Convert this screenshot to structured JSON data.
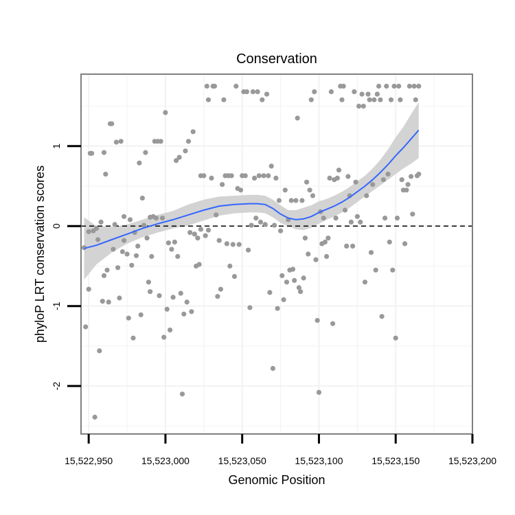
{
  "chart_data": {
    "type": "scatter",
    "title": "Conservation",
    "xlabel": "Genomic Position",
    "ylabel": "phyloP LRT conservation scores",
    "xlim": [
      15522945,
      15523200
    ],
    "ylim": [
      -2.6,
      1.9
    ],
    "x_ticks": [
      15522950,
      15523000,
      15523050,
      15523100,
      15523150,
      15523200
    ],
    "x_tick_labels": [
      "15,522,950",
      "15,523,000",
      "15,523,050",
      "15,523,100",
      "15,523,150",
      "15,523,200"
    ],
    "y_ticks": [
      -2,
      -1,
      0,
      1
    ],
    "y_tick_labels": [
      "-2",
      "-1",
      "0",
      "1"
    ],
    "reference_line": {
      "y": 0,
      "style": "dashed"
    },
    "grid": true,
    "colors": {
      "points": "#999999",
      "smooth": "#3366ff",
      "ribbon": "#d3d3d3",
      "border": "#7f7f7f",
      "grid": "#f2f2f2"
    },
    "series": [
      {
        "name": "scores",
        "points": [
          [
            15522947,
            -0.27
          ],
          [
            15522948,
            -1.26
          ],
          [
            15522950,
            -0.07
          ],
          [
            15522950,
            -0.79
          ],
          [
            15522951,
            0.91
          ],
          [
            15522952,
            0.91
          ],
          [
            15522953,
            -0.06
          ],
          [
            15522954,
            -2.39
          ],
          [
            15522955,
            -0.03
          ],
          [
            15522956,
            -0.17
          ],
          [
            15522957,
            -1.56
          ],
          [
            15522958,
            0.05
          ],
          [
            15522959,
            -0.94
          ],
          [
            15522960,
            0.92
          ],
          [
            15522960,
            -0.62
          ],
          [
            15522961,
            0.65
          ],
          [
            15522962,
            -0.55
          ],
          [
            15522963,
            -0.95
          ],
          [
            15522964,
            1.28
          ],
          [
            15522965,
            1.28
          ],
          [
            15522966,
            -0.29
          ],
          [
            15522967,
            0.02
          ],
          [
            15522968,
            1.05
          ],
          [
            15522969,
            -0.52
          ],
          [
            15522970,
            -0.9
          ],
          [
            15522971,
            1.06
          ],
          [
            15522972,
            -0.32
          ],
          [
            15522973,
            -0.18
          ],
          [
            15522973,
            0.12
          ],
          [
            15522975,
            -0.35
          ],
          [
            15522976,
            -1.15
          ],
          [
            15522977,
            0.08
          ],
          [
            15522978,
            -0.49
          ],
          [
            15522979,
            -1.4
          ],
          [
            15522980,
            -0.08
          ],
          [
            15522981,
            -0.37
          ],
          [
            15522982,
            -0.25
          ],
          [
            15522983,
            0.79
          ],
          [
            15522984,
            -1.11
          ],
          [
            15522985,
            0.35
          ],
          [
            15522986,
            0.01
          ],
          [
            15522987,
            0.92
          ],
          [
            15522988,
            -0.15
          ],
          [
            15522989,
            -0.7
          ],
          [
            15522990,
            -0.82
          ],
          [
            15522990,
            0.11
          ],
          [
            15522991,
            -0.38
          ],
          [
            15522992,
            0.12
          ],
          [
            15522993,
            1.06
          ],
          [
            15522994,
            0.1
          ],
          [
            15522995,
            1.06
          ],
          [
            15522996,
            -0.87
          ],
          [
            15522997,
            1.06
          ],
          [
            15522998,
            0.1
          ],
          [
            15522999,
            -1.39
          ],
          [
            15523000,
            1.42
          ],
          [
            15523001,
            -1.04
          ],
          [
            15523002,
            -0.21
          ],
          [
            15523003,
            -1.3
          ],
          [
            15523004,
            -0.29
          ],
          [
            15523005,
            -0.89
          ],
          [
            15523006,
            -0.2
          ],
          [
            15523007,
            0.82
          ],
          [
            15523008,
            -0.38
          ],
          [
            15523009,
            0.86
          ],
          [
            15523010,
            -0.84
          ],
          [
            15523011,
            -2.1
          ],
          [
            15523012,
            -1.1
          ],
          [
            15523013,
            0.94
          ],
          [
            15523014,
            -0.95
          ],
          [
            15523015,
            1.06
          ],
          [
            15523016,
            -0.08
          ],
          [
            15523017,
            -1.07
          ],
          [
            15523018,
            1.18
          ],
          [
            15523019,
            -0.1
          ],
          [
            15523020,
            -0.5
          ],
          [
            15523021,
            -0.15
          ],
          [
            15523022,
            -0.48
          ],
          [
            15523023,
            0.63
          ],
          [
            15523023,
            -0.04
          ],
          [
            15523025,
            0.63
          ],
          [
            15523026,
            -0.12
          ],
          [
            15523027,
            1.75
          ],
          [
            15523028,
            -0.05
          ],
          [
            15523028,
            1.58
          ],
          [
            15523030,
            0.6
          ],
          [
            15523031,
            1.75
          ],
          [
            15523032,
            1.75
          ],
          [
            15523033,
            0.14
          ],
          [
            15523034,
            -0.88
          ],
          [
            15523035,
            -0.18
          ],
          [
            15523036,
            -0.79
          ],
          [
            15523037,
            0.52
          ],
          [
            15523038,
            1.58
          ],
          [
            15523039,
            0.63
          ],
          [
            15523040,
            -0.22
          ],
          [
            15523041,
            0.63
          ],
          [
            15523042,
            -0.5
          ],
          [
            15523043,
            0.63
          ],
          [
            15523044,
            -0.23
          ],
          [
            15523045,
            -0.63
          ],
          [
            15523046,
            1.75
          ],
          [
            15523047,
            0.47
          ],
          [
            15523048,
            -0.23
          ],
          [
            15523049,
            0.45
          ],
          [
            15523050,
            0.63
          ],
          [
            15523051,
            1.68
          ],
          [
            15523052,
            0.63
          ],
          [
            15523053,
            1.68
          ],
          [
            15523054,
            -0.3
          ],
          [
            15523055,
            -1.02
          ],
          [
            15523056,
            0.01
          ],
          [
            15523057,
            1.68
          ],
          [
            15523058,
            0.6
          ],
          [
            15523059,
            0.1
          ],
          [
            15523060,
            1.68
          ],
          [
            15523061,
            0.63
          ],
          [
            15523062,
            0.05
          ],
          [
            15523063,
            1.58
          ],
          [
            15523064,
            0.63
          ],
          [
            15523065,
            0.02
          ],
          [
            15523066,
            1.65
          ],
          [
            15523067,
            0.63
          ],
          [
            15523068,
            -0.83
          ],
          [
            15523069,
            0.75
          ],
          [
            15523070,
            -1.78
          ],
          [
            15523071,
            0.01
          ],
          [
            15523072,
            0.6
          ],
          [
            15523073,
            -1.03
          ],
          [
            15523074,
            0.32
          ],
          [
            15523075,
            -0.06
          ],
          [
            15523076,
            -0.62
          ],
          [
            15523077,
            -0.92
          ],
          [
            15523078,
            0.45
          ],
          [
            15523079,
            -0.7
          ],
          [
            15523080,
            0.08
          ],
          [
            15523081,
            -0.55
          ],
          [
            15523082,
            0.32
          ],
          [
            15523083,
            -0.54
          ],
          [
            15523084,
            -0.68
          ],
          [
            15523085,
            0.32
          ],
          [
            15523086,
            1.35
          ],
          [
            15523087,
            -0.77
          ],
          [
            15523088,
            -0.82
          ],
          [
            15523089,
            0.32
          ],
          [
            15523090,
            -0.65
          ],
          [
            15523091,
            -0.15
          ],
          [
            15523092,
            0.55
          ],
          [
            15523093,
            -0.35
          ],
          [
            15523094,
            0.45
          ],
          [
            15523095,
            1.58
          ],
          [
            15523096,
            0.38
          ],
          [
            15523097,
            1.68
          ],
          [
            15523098,
            -0.42
          ],
          [
            15523099,
            -1.18
          ],
          [
            15523100,
            -2.08
          ],
          [
            15523101,
            0.18
          ],
          [
            15523102,
            -0.22
          ],
          [
            15523103,
            0.1
          ],
          [
            15523104,
            -0.2
          ],
          [
            15523105,
            -0.38
          ],
          [
            15523106,
            -0.15
          ],
          [
            15523107,
            0.6
          ],
          [
            15523108,
            1.68
          ],
          [
            15523109,
            -1.22
          ],
          [
            15523110,
            0.58
          ],
          [
            15523111,
            0.1
          ],
          [
            15523112,
            0.6
          ],
          [
            15523113,
            0.7
          ],
          [
            15523114,
            1.75
          ],
          [
            15523115,
            1.58
          ],
          [
            15523116,
            1.75
          ],
          [
            15523117,
            0.2
          ],
          [
            15523118,
            -0.25
          ],
          [
            15523119,
            0.62
          ],
          [
            15523120,
            0.38
          ],
          [
            15523121,
            0.05
          ],
          [
            15523122,
            -0.25
          ],
          [
            15523123,
            1.68
          ],
          [
            15523124,
            0.55
          ],
          [
            15523125,
            0.12
          ],
          [
            15523126,
            1.5
          ],
          [
            15523127,
            0.05
          ],
          [
            15523128,
            1.65
          ],
          [
            15523129,
            1.5
          ],
          [
            15523130,
            -0.7
          ],
          [
            15523131,
            0.38
          ],
          [
            15523132,
            1.65
          ],
          [
            15523133,
            1.58
          ],
          [
            15523134,
            -0.33
          ],
          [
            15523135,
            0.52
          ],
          [
            15523136,
            1.58
          ],
          [
            15523137,
            -0.55
          ],
          [
            15523138,
            1.65
          ],
          [
            15523139,
            1.75
          ],
          [
            15523140,
            1.58
          ],
          [
            15523141,
            -1.13
          ],
          [
            15523142,
            0.58
          ],
          [
            15523143,
            0.1
          ],
          [
            15523144,
            1.75
          ],
          [
            15523145,
            0.65
          ],
          [
            15523146,
            -0.2
          ],
          [
            15523147,
            1.58
          ],
          [
            15523148,
            -0.55
          ],
          [
            15523149,
            1.75
          ],
          [
            15523150,
            -1.4
          ],
          [
            15523151,
            0.1
          ],
          [
            15523152,
            1.75
          ],
          [
            15523153,
            1.58
          ],
          [
            15523154,
            0.58
          ],
          [
            15523155,
            0.45
          ],
          [
            15523156,
            -0.22
          ],
          [
            15523157,
            0.45
          ],
          [
            15523158,
            0.52
          ],
          [
            15523159,
            1.75
          ],
          [
            15523160,
            0.62
          ],
          [
            15523161,
            0.15
          ],
          [
            15523162,
            1.75
          ],
          [
            15523163,
            1.58
          ],
          [
            15523164,
            0.63
          ],
          [
            15523165,
            1.75
          ],
          [
            15523165,
            0.65
          ]
        ]
      },
      {
        "name": "loess fit",
        "x": [
          15522947,
          15522955,
          15522965,
          15522975,
          15522985,
          15522995,
          15523005,
          15523015,
          15523025,
          15523035,
          15523045,
          15523055,
          15523060,
          15523065,
          15523070,
          15523075,
          15523080,
          15523085,
          15523090,
          15523095,
          15523100,
          15523105,
          15523110,
          15523115,
          15523120,
          15523125,
          15523130,
          15523135,
          15523140,
          15523145,
          15523150,
          15523155,
          15523160,
          15523165
        ],
        "y": [
          -0.28,
          -0.24,
          -0.17,
          -0.1,
          -0.03,
          0.03,
          0.08,
          0.14,
          0.2,
          0.25,
          0.27,
          0.28,
          0.28,
          0.27,
          0.22,
          0.15,
          0.1,
          0.08,
          0.09,
          0.12,
          0.17,
          0.21,
          0.25,
          0.3,
          0.36,
          0.43,
          0.5,
          0.58,
          0.67,
          0.77,
          0.88,
          0.98,
          1.09,
          1.2
        ],
        "ci_low": [
          -0.67,
          -0.48,
          -0.33,
          -0.22,
          -0.14,
          -0.08,
          -0.03,
          0.01,
          0.07,
          0.13,
          0.16,
          0.17,
          0.17,
          0.16,
          0.11,
          0.04,
          0.0,
          -0.04,
          -0.05,
          -0.02,
          0.03,
          0.08,
          0.12,
          0.17,
          0.23,
          0.3,
          0.37,
          0.44,
          0.51,
          0.58,
          0.65,
          0.72,
          0.78,
          0.85
        ],
        "ci_high": [
          0.11,
          0.0,
          -0.01,
          0.02,
          0.08,
          0.14,
          0.19,
          0.27,
          0.33,
          0.37,
          0.38,
          0.39,
          0.39,
          0.38,
          0.33,
          0.26,
          0.2,
          0.2,
          0.23,
          0.26,
          0.31,
          0.34,
          0.38,
          0.43,
          0.49,
          0.56,
          0.63,
          0.72,
          0.83,
          0.96,
          1.11,
          1.24,
          1.4,
          1.55
        ]
      }
    ]
  }
}
